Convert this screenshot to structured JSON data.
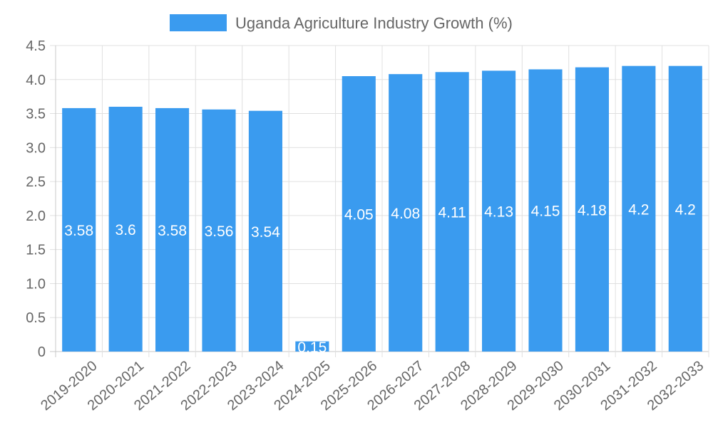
{
  "chart_data": {
    "type": "bar",
    "title": "",
    "legend": {
      "label": "Uganda Agriculture Industry Growth (%)",
      "placement": "top-center"
    },
    "categories": [
      "2019-2020",
      "2020-2021",
      "2021-2022",
      "2022-2023",
      "2023-2024",
      "2024-2025",
      "2025-2026",
      "2026-2027",
      "2027-2028",
      "2028-2029",
      "2029-2030",
      "2030-2031",
      "2031-2032",
      "2032-2033"
    ],
    "series": [
      {
        "name": "Uganda Agriculture Industry Growth (%)",
        "values": [
          3.58,
          3.6,
          3.58,
          3.56,
          3.54,
          0.15,
          4.05,
          4.08,
          4.11,
          4.13,
          4.15,
          4.18,
          4.2,
          4.2
        ],
        "color": "#3a9bef"
      }
    ],
    "y_ticks": [
      "0",
      "0.5",
      "1.0",
      "1.5",
      "2.0",
      "2.5",
      "3.0",
      "3.5",
      "4.0",
      "4.5"
    ],
    "ylim": [
      0,
      4.5
    ],
    "xlabel": "",
    "ylabel": "",
    "grid": true,
    "colors": {
      "grid": "#e0e0e0",
      "axis": "#c8c8c8",
      "text": "#666666",
      "data_label": "#ffffff"
    }
  }
}
